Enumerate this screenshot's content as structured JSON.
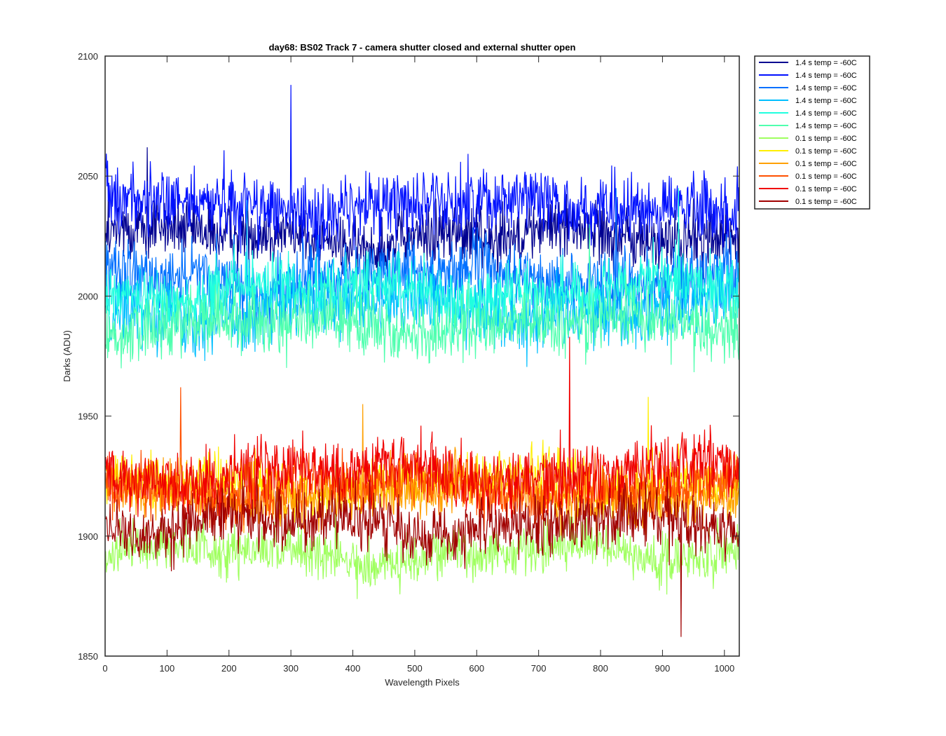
{
  "chart_data": {
    "type": "line",
    "title": "day68: BS02  Track 7 - camera shutter closed and external shutter open",
    "xlabel": "Wavelength Pixels",
    "ylabel": "Darks (ADU)",
    "xlim": [
      0,
      1024
    ],
    "ylim": [
      1850,
      2100
    ],
    "xticks": [
      0,
      100,
      200,
      300,
      400,
      500,
      600,
      700,
      800,
      900,
      1000
    ],
    "yticks": [
      1850,
      1900,
      1950,
      2000,
      2050,
      2100
    ],
    "grid": false,
    "legend_position": "outside-top-right",
    "series": [
      {
        "name": "1.4 s temp = -60C",
        "color": "#000090",
        "mean": 2025,
        "noise": 11,
        "spike": 2062
      },
      {
        "name": "1.4 s temp = -60C",
        "color": "#0010ff",
        "mean": 2038,
        "noise": 12,
        "spike": 2088
      },
      {
        "name": "1.4 s temp = -60C",
        "color": "#0070ff",
        "mean": 2008,
        "noise": 12,
        "spike": 2045
      },
      {
        "name": "1.4 s temp = -60C",
        "color": "#00bfff",
        "mean": 1995,
        "noise": 13,
        "spike": 2040
      },
      {
        "name": "1.4 s temp = -60C",
        "color": "#20ffdf",
        "mean": 2002,
        "noise": 11,
        "spike": 2045
      },
      {
        "name": "1.4 s temp = -60C",
        "color": "#50ffaf",
        "mean": 1988,
        "noise": 11,
        "spike": 2030
      },
      {
        "name": "0.1 s temp = -60C",
        "color": "#9fff5f",
        "mean": 1893,
        "noise": 9,
        "spike": 1930
      },
      {
        "name": "0.1 s temp = -60C",
        "color": "#ffef00",
        "mean": 1922,
        "noise": 10,
        "spike": 1958
      },
      {
        "name": "0.1 s temp = -60C",
        "color": "#ffa000",
        "mean": 1918,
        "noise": 10,
        "spike": 1955
      },
      {
        "name": "0.1 s temp = -60C",
        "color": "#ff5000",
        "mean": 1920,
        "noise": 10,
        "spike": 1962
      },
      {
        "name": "0.1 s temp = -60C",
        "color": "#f00000",
        "mean": 1926,
        "noise": 11,
        "spike": 1983
      },
      {
        "name": "0.1 s temp = -60C",
        "color": "#a00000",
        "mean": 1905,
        "noise": 11,
        "spike": 1858
      }
    ]
  }
}
